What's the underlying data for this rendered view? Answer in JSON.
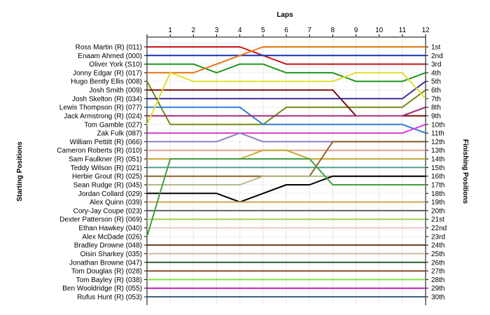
{
  "chart_data": {
    "type": "line",
    "title": "",
    "x_axis_label": "Laps",
    "left_axis_label": "Starting Positions",
    "right_axis_label": "Finishing Positions",
    "laps": [
      "1",
      "2",
      "3",
      "4",
      "5",
      "6",
      "7",
      "8",
      "9",
      "10",
      "11",
      "12"
    ],
    "start_labels": [
      "Ross Martin  (R) (011)",
      "Enaam Ahmed (000)",
      "Oliver York (S10)",
      "Jonny Edgar (R) (017)",
      "Hugo Bently Ellis (008)",
      "Josh Smith (009)",
      "Josh Skelton  (R) (034)",
      "Lewis Thompson (R) (077)",
      "Jack Armstrong  (R) (024)",
      "Tom Gamble (027)",
      "Zak Fulk (087)",
      "William Pettitt (R) (066)",
      "Cameron Roberts  (R) (010)",
      "Sam Faulkner  (R) (051)",
      "Teddy Wilson (R) (021)",
      "Herbie Grout  (R) (025)",
      "Sean Rudge (R) (045)",
      "Jordan Collard (029)",
      "Alex Quinn (039)",
      "Cory-Jay Coupe (023)",
      "Dexter Patterson (R) (069)",
      "Ethan Hawkey (040)",
      "Alex McDade (026)",
      "Bradley Drowne (048)",
      "Oisin Sharkey (035)",
      "Jonathan Browne (047)",
      "Tom Douglas  (R) (028)",
      "Tom Bayley (R) (038)",
      "Ben Wooldridge (R) (055)",
      "Rufus Hunt (R) (053)"
    ],
    "finish_labels": [
      "1st",
      "2nd",
      "3rd",
      "4th",
      "5th",
      "6th",
      "7th",
      "8th",
      "9th",
      "10th",
      "11th",
      "12th",
      "13th",
      "14th",
      "15th",
      "16th",
      "17th",
      "18th",
      "19th",
      "20th",
      "21st",
      "22nd",
      "23rd",
      "24th",
      "25th",
      "26th",
      "27th",
      "28th",
      "29th",
      "30th"
    ],
    "series": [
      {
        "color": "#c81414",
        "positions": [
          1,
          1,
          1,
          1,
          1,
          2,
          3,
          3,
          3,
          3,
          3,
          3,
          3
        ]
      },
      {
        "color": "#1432b4",
        "positions": [
          2,
          2,
          2,
          2,
          2,
          2,
          2,
          2,
          2,
          2,
          2,
          2,
          2
        ]
      },
      {
        "color": "#1e961e",
        "positions": [
          3,
          3,
          3,
          4,
          3,
          3,
          4,
          4,
          4,
          5,
          5,
          5,
          4
        ]
      },
      {
        "color": "#e67814",
        "positions": [
          4,
          4,
          4,
          3,
          2,
          1,
          1,
          1,
          1,
          1,
          1,
          1,
          1
        ]
      },
      {
        "color": "#6e8c14",
        "positions": [
          5,
          10,
          10,
          10,
          10,
          10,
          8,
          8,
          8,
          8,
          8,
          8,
          6
        ]
      },
      {
        "color": "#7a0c0c",
        "positions": [
          6,
          6,
          6,
          6,
          6,
          6,
          6,
          6,
          6,
          9,
          9,
          9,
          9
        ]
      },
      {
        "color": "#3c32a0",
        "positions": [
          7,
          7,
          7,
          7,
          7,
          7,
          7,
          7,
          7,
          7,
          7,
          7,
          5
        ]
      },
      {
        "color": "#2d7ed8",
        "positions": [
          8,
          8,
          8,
          8,
          8,
          10,
          10,
          10,
          10,
          10,
          10,
          10,
          11
        ]
      },
      {
        "color": "#a02878",
        "positions": [
          9,
          9,
          9,
          9,
          9,
          9,
          9,
          9,
          9,
          9,
          9,
          9,
          8
        ]
      },
      {
        "color": "#e0e030",
        "positions": [
          10,
          4,
          5,
          5,
          5,
          5,
          5,
          5,
          5,
          4,
          4,
          4,
          7
        ]
      },
      {
        "color": "#d83cd8",
        "positions": [
          11,
          11,
          11,
          11,
          11,
          11,
          11,
          11,
          11,
          11,
          11,
          11,
          10
        ]
      },
      {
        "color": "#9080c8",
        "positions": [
          12,
          12,
          12,
          12,
          11,
          12,
          12,
          12,
          12,
          12,
          12,
          12,
          12
        ]
      },
      {
        "color": "#e8a090",
        "positions": [
          13,
          13,
          13,
          13,
          13,
          13,
          13,
          13,
          13,
          13,
          13,
          13,
          13
        ]
      },
      {
        "color": "#c8aa32",
        "positions": [
          14,
          14,
          14,
          14,
          14,
          13,
          13,
          14,
          14,
          14,
          14,
          14,
          14
        ]
      },
      {
        "color": "#50a096",
        "positions": [
          15,
          15,
          15,
          15,
          15,
          15,
          15,
          15,
          15,
          15,
          15,
          15,
          15
        ]
      },
      {
        "color": "#8c6428",
        "positions": [
          16,
          16,
          16,
          16,
          16,
          16,
          16,
          16,
          12,
          12,
          12,
          12,
          12
        ]
      },
      {
        "color": "#b8b888",
        "positions": [
          17,
          17,
          17,
          17,
          17,
          16,
          16,
          16,
          16,
          16,
          16,
          16,
          16
        ]
      },
      {
        "color": "#000000",
        "positions": [
          18,
          18,
          18,
          18,
          19,
          18,
          17,
          17,
          16,
          16,
          16,
          16,
          16
        ]
      },
      {
        "color": "#d2a050",
        "positions": [
          19,
          19,
          19,
          19,
          19,
          19,
          19,
          19,
          19,
          19,
          19,
          19,
          19
        ]
      },
      {
        "color": "#606060",
        "positions": [
          20,
          20,
          20,
          20,
          20,
          20,
          20,
          20,
          20,
          20,
          20,
          20,
          20
        ]
      },
      {
        "color": "#a0d050",
        "positions": [
          21,
          21,
          21,
          21,
          21,
          21,
          21,
          21,
          21,
          21,
          21,
          21,
          21
        ]
      },
      {
        "color": "#f0c8c8",
        "positions": [
          22,
          22,
          22,
          22,
          22,
          22,
          22,
          22,
          22,
          22,
          22,
          22,
          22
        ]
      },
      {
        "color": "#40a040",
        "positions": [
          23,
          14,
          14,
          14,
          14,
          14,
          14,
          14,
          17,
          17,
          17,
          17,
          17
        ]
      },
      {
        "color": "#5e3a1a",
        "positions": [
          24,
          24,
          24,
          24,
          24,
          24,
          24,
          24,
          24,
          24,
          24,
          24,
          24
        ]
      },
      {
        "color": "#d0b8a0",
        "positions": [
          25,
          25,
          25,
          25,
          25,
          25,
          25,
          25,
          25,
          25,
          25,
          25,
          25
        ]
      },
      {
        "color": "#2a5a2a",
        "positions": [
          26,
          26,
          26,
          26,
          26,
          26,
          26,
          26,
          26,
          26,
          26,
          26,
          26
        ]
      },
      {
        "color": "#905030",
        "positions": [
          27,
          27,
          27,
          27,
          27,
          27,
          27,
          27,
          27,
          27,
          27,
          27,
          27
        ]
      },
      {
        "color": "#80e040",
        "positions": [
          28,
          28,
          28,
          28,
          28,
          28,
          28,
          28,
          28,
          28,
          28,
          28,
          28
        ]
      },
      {
        "color": "#c020c0",
        "positions": [
          29,
          29,
          29,
          29,
          29,
          29,
          29,
          29,
          29,
          29,
          29,
          29,
          29
        ]
      },
      {
        "color": "#406080",
        "positions": [
          30,
          30,
          30,
          30,
          30,
          30,
          30,
          30,
          30,
          30,
          30,
          30,
          30
        ]
      }
    ]
  }
}
